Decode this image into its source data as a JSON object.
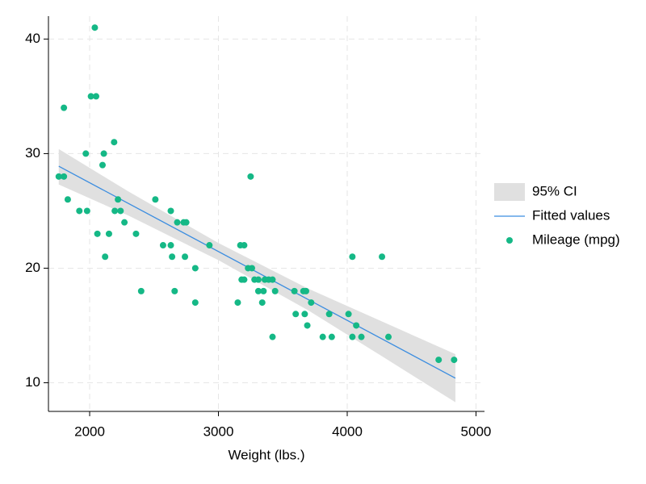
{
  "chart_data": {
    "type": "scatter",
    "xlabel": "Weight (lbs.)",
    "xlim": [
      1680,
      5066
    ],
    "xticks": [
      2000,
      3000,
      4000,
      5000
    ],
    "ylim": [
      7.5,
      42
    ],
    "yticks": [
      10,
      20,
      30,
      40
    ],
    "grid": true,
    "legend": "right",
    "series": [
      {
        "name": "95% CI",
        "kind": "band",
        "color": "#e0e0e0",
        "x": [
          1760,
          2300,
          3000,
          3700,
          4300,
          4840
        ],
        "lower": [
          27.3,
          24.6,
          20.7,
          16.3,
          12.1,
          8.3
        ],
        "upper": [
          30.4,
          26.7,
          22.2,
          18.2,
          15.2,
          12.5
        ]
      },
      {
        "name": "Fitted values",
        "kind": "line",
        "color": "#3b8de0",
        "x": [
          1760,
          4840
        ],
        "values": [
          28.9,
          10.4
        ]
      },
      {
        "name": "Mileage (mpg)",
        "kind": "points",
        "color": "#15b886",
        "x": [
          1760,
          1800,
          1800,
          1830,
          1920,
          1970,
          1980,
          2040,
          2010,
          2050,
          2060,
          2100,
          2110,
          2120,
          2150,
          2190,
          2195,
          2220,
          2240,
          2270,
          2360,
          2400,
          2510,
          2570,
          2630,
          2630,
          2640,
          2660,
          2680,
          2730,
          2750,
          2740,
          2820,
          2820,
          2930,
          3150,
          3170,
          3200,
          3180,
          3200,
          3230,
          3250,
          3260,
          3280,
          3310,
          3310,
          3340,
          3350,
          3360,
          3390,
          3420,
          3420,
          3440,
          3590,
          3600,
          3660,
          3680,
          3670,
          3690,
          3720,
          3810,
          3860,
          3880,
          4010,
          4040,
          4040,
          4070,
          4110,
          4270,
          4320,
          4710,
          4830
        ],
        "values": [
          28,
          28,
          34,
          26,
          25,
          30,
          25,
          41,
          35,
          35,
          23,
          29,
          30,
          21,
          23,
          31,
          25,
          26,
          25,
          24,
          23,
          18,
          26,
          22,
          22,
          25,
          21,
          18,
          24,
          24,
          24,
          21,
          20,
          17,
          22,
          17,
          22,
          22,
          19,
          19,
          20,
          28,
          20,
          19,
          19,
          18,
          17,
          18,
          19,
          19,
          14,
          19,
          18,
          18,
          16,
          18,
          18,
          16,
          15,
          17,
          14,
          16,
          14,
          16,
          21,
          14,
          15,
          14,
          21,
          14,
          12,
          12
        ]
      }
    ]
  }
}
